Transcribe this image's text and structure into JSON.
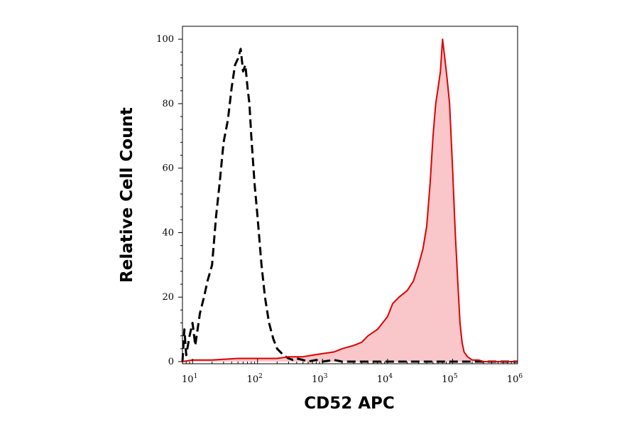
{
  "chart_data": {
    "type": "area",
    "title": "",
    "xlabel": "CD52 APC",
    "ylabel": "Relative Cell Count",
    "x_scale": "log",
    "xlim": [
      7,
      1000000
    ],
    "ylim": [
      0,
      104
    ],
    "x_ticks": [
      {
        "value": 10,
        "base": "10",
        "exp": "1"
      },
      {
        "value": 100,
        "base": "10",
        "exp": "2"
      },
      {
        "value": 1000,
        "base": "10",
        "exp": "3"
      },
      {
        "value": 10000,
        "base": "10",
        "exp": "4"
      },
      {
        "value": 100000,
        "base": "10",
        "exp": "5"
      },
      {
        "value": 1000000,
        "base": "10",
        "exp": "6"
      }
    ],
    "y_ticks": [
      {
        "value": 0,
        "label": "0"
      },
      {
        "value": 20,
        "label": "20"
      },
      {
        "value": 40,
        "label": "40"
      },
      {
        "value": 60,
        "label": "60"
      },
      {
        "value": 80,
        "label": "80"
      },
      {
        "value": 100,
        "label": "100"
      }
    ],
    "grid": false,
    "legend": "none",
    "series": [
      {
        "style": "dashed",
        "color": "#000000",
        "fill": "none",
        "x": [
          7,
          7.5,
          8,
          9,
          10,
          11,
          13,
          15,
          17,
          20,
          23,
          26,
          30,
          35,
          40,
          45,
          50,
          55,
          60,
          65,
          70,
          75,
          80,
          90,
          100,
          115,
          130,
          150,
          175,
          200,
          250,
          300,
          350,
          400,
          500,
          600,
          800,
          1000,
          1500,
          2000,
          3000,
          5000,
          10000,
          100000,
          1000000
        ],
        "y": [
          0,
          10,
          2,
          8,
          12,
          5,
          15,
          20,
          25,
          30,
          45,
          55,
          68,
          75,
          85,
          92,
          94,
          97,
          90,
          92,
          85,
          80,
          70,
          55,
          45,
          30,
          20,
          12,
          7,
          4,
          2,
          1,
          0.5,
          1,
          0.5,
          0,
          0.5,
          0,
          0.5,
          0,
          0,
          0,
          0,
          0,
          0
        ]
      },
      {
        "style": "solid",
        "color": "#dd0000",
        "fill": "#f9c6c9",
        "x": [
          7,
          10,
          20,
          50,
          100,
          200,
          300,
          500,
          700,
          1000,
          1500,
          2000,
          3000,
          4000,
          5000,
          7000,
          10000,
          12000,
          15000,
          20000,
          25000,
          30000,
          35000,
          40000,
          45000,
          50000,
          55000,
          60000,
          65000,
          70000,
          75000,
          80000,
          85000,
          90000,
          100000,
          110000,
          120000,
          130000,
          140000,
          150000,
          170000,
          200000,
          250000,
          300000,
          400000,
          600000,
          1000000
        ],
        "y": [
          0,
          0.5,
          0.5,
          1,
          1,
          1,
          1.5,
          1.5,
          2,
          2.5,
          3,
          4,
          5,
          6,
          8,
          10,
          14,
          18,
          20,
          22,
          25,
          30,
          35,
          42,
          55,
          70,
          80,
          85,
          90,
          100,
          95,
          90,
          85,
          80,
          60,
          40,
          25,
          12,
          6,
          3,
          1.5,
          0.5,
          0.5,
          0,
          0,
          0,
          0
        ]
      }
    ]
  }
}
